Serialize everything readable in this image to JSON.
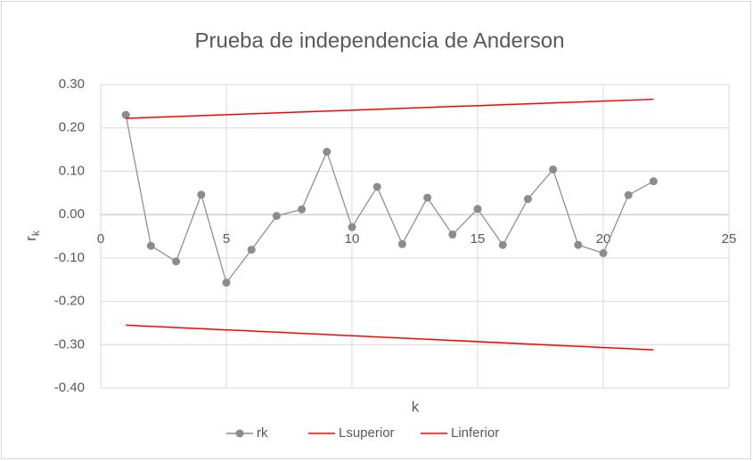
{
  "chart_data": {
    "type": "scatter",
    "title": "Prueba de independencia de Anderson",
    "x_label": "k",
    "y_label": {
      "base": "r",
      "subscript": "k"
    },
    "xlim": [
      0,
      25
    ],
    "xticks": [
      0,
      5,
      10,
      15,
      20,
      25
    ],
    "ylim": [
      -0.4,
      0.3
    ],
    "yticks": [
      {
        "value": -0.4,
        "label": "-0.40"
      },
      {
        "value": -0.3,
        "label": "-0.30"
      },
      {
        "value": -0.2,
        "label": "-0.20"
      },
      {
        "value": -0.1,
        "label": "-0.10"
      },
      {
        "value": 0,
        "label": "0.00"
      },
      {
        "value": 0.1,
        "label": "0.10"
      },
      {
        "value": 0.2,
        "label": "0.20"
      },
      {
        "value": 0.3,
        "label": "0.30"
      }
    ],
    "grid": true,
    "legend": "bottom",
    "series": [
      {
        "name": "rk",
        "color": "#8c8c8c",
        "markers": true,
        "x": [
          1,
          2,
          3,
          4,
          5,
          6,
          7,
          8,
          9,
          10,
          11,
          12,
          13,
          14,
          15,
          16,
          17,
          18,
          19,
          20,
          21,
          22
        ],
        "values": [
          0.23,
          -0.072,
          -0.108,
          0.046,
          -0.157,
          -0.081,
          -0.003,
          0.012,
          0.145,
          -0.029,
          0.064,
          -0.068,
          0.039,
          -0.046,
          0.013,
          -0.07,
          0.036,
          0.104,
          -0.07,
          -0.089,
          0.045,
          0.077
        ]
      },
      {
        "name": "Lsuperior",
        "color": "#ff0000",
        "markers": false,
        "x": [
          1,
          22
        ],
        "values": [
          0.222,
          0.266
        ]
      },
      {
        "name": "Linferior",
        "color": "#ff0000",
        "markers": false,
        "x": [
          1,
          22
        ],
        "values": [
          -0.255,
          -0.312
        ]
      }
    ]
  }
}
